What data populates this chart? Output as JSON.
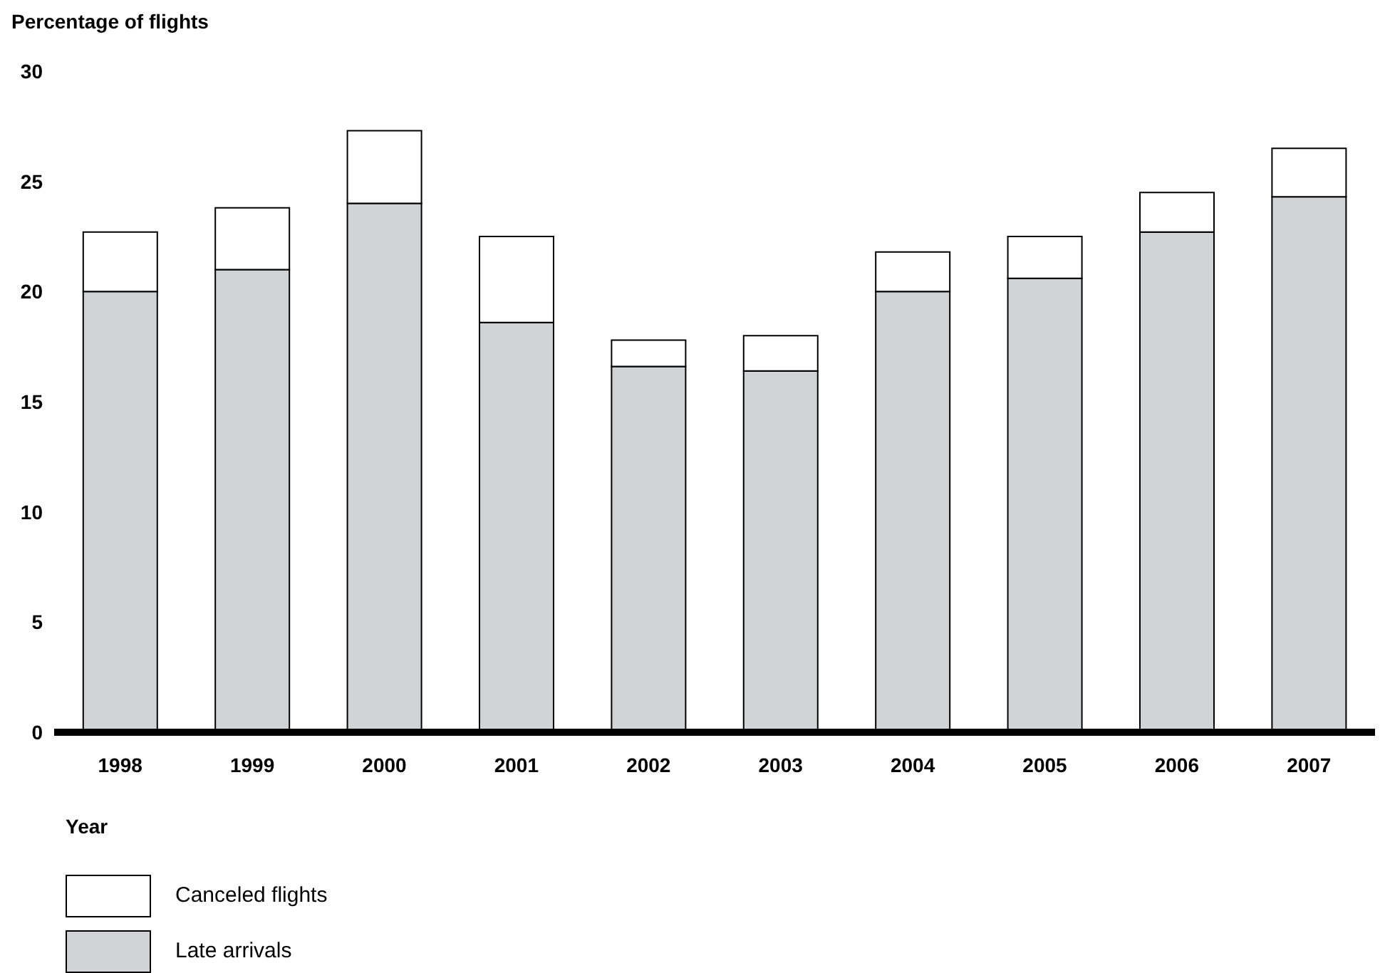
{
  "chart_data": {
    "type": "bar",
    "stacked": true,
    "ylabel": "Percentage of flights",
    "xlabel": "Year",
    "categories": [
      "1998",
      "1999",
      "2000",
      "2001",
      "2002",
      "2003",
      "2004",
      "2005",
      "2006",
      "2007"
    ],
    "series": [
      {
        "name": "Late arrivals",
        "color": "#d1d3d4",
        "values": [
          20.0,
          21.0,
          24.0,
          18.6,
          16.6,
          16.4,
          20.0,
          20.6,
          22.7,
          24.3
        ]
      },
      {
        "name": "Canceled flights",
        "color": "#ffffff",
        "values": [
          2.7,
          2.8,
          3.3,
          3.9,
          1.2,
          1.6,
          1.8,
          1.9,
          1.8,
          2.2
        ]
      }
    ],
    "ylim": [
      0,
      30
    ],
    "yticks": [
      0,
      5,
      10,
      15,
      20,
      25,
      30
    ],
    "grid": false,
    "legend": "bottom left"
  }
}
